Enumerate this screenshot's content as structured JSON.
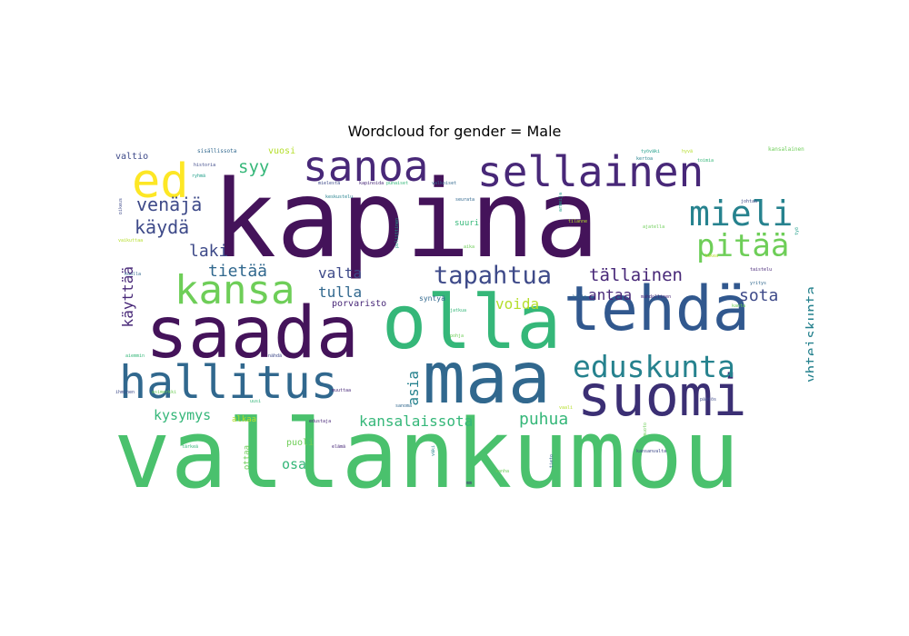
{
  "title": "Wordcloud for gender = Male",
  "palette": {
    "dark_purple": "#44135a",
    "purple": "#482878",
    "indigo": "#3e4a89",
    "blue": "#31688e",
    "teal": "#26828e",
    "green_teal": "#1f9e89",
    "green": "#35b779",
    "light_green": "#6ece58",
    "yellow_green": "#b5de2b",
    "yellow": "#fde725"
  },
  "words": [
    {
      "text": "kapina",
      "color": "#44135a"
    },
    {
      "text": "vallankumou",
      "color": "#4ac16d"
    },
    {
      "text": "saada",
      "color": "#44135a"
    },
    {
      "text": "olla",
      "color": "#35b779"
    },
    {
      "text": "maa",
      "color": "#31688e"
    },
    {
      "text": "tehdä",
      "color": "#31588e"
    },
    {
      "text": "suomi",
      "color": "#3b2f74"
    },
    {
      "text": "hallitus",
      "color": "#31688e"
    },
    {
      "text": "kansa",
      "color": "#6ece58"
    },
    {
      "text": "sanoa",
      "color": "#482878"
    },
    {
      "text": "sellainen",
      "color": "#482878"
    },
    {
      "text": "ed",
      "color": "#fde725"
    },
    {
      "text": "eduskunta",
      "color": "#26828e"
    },
    {
      "text": "mieli",
      "color": "#26828e"
    },
    {
      "text": "pitää",
      "color": "#6ece58"
    },
    {
      "text": "tapahtua",
      "color": "#3e4a89"
    },
    {
      "text": "venäjä",
      "color": "#3e4a89"
    },
    {
      "text": "käydä",
      "color": "#3e4a89"
    },
    {
      "text": "syy",
      "color": "#35b779"
    },
    {
      "text": "laki",
      "color": "#3e4a89"
    },
    {
      "text": "tietää",
      "color": "#31688e"
    },
    {
      "text": "valta",
      "color": "#3e4a89"
    },
    {
      "text": "tulla",
      "color": "#31688e"
    },
    {
      "text": "tällainen",
      "color": "#482878"
    },
    {
      "text": "sota",
      "color": "#3e4a89"
    },
    {
      "text": "antaa",
      "color": "#482878"
    },
    {
      "text": "voida",
      "color": "#b5de2b"
    },
    {
      "text": "kysymys",
      "color": "#35b779"
    },
    {
      "text": "kansalaissota",
      "color": "#35b779"
    },
    {
      "text": "puhua",
      "color": "#35b779"
    },
    {
      "text": "asia",
      "color": "#26828e"
    },
    {
      "text": "yhteiskunta",
      "color": "#26828e"
    },
    {
      "text": "käyttää",
      "color": "#482878"
    },
    {
      "text": "osa",
      "color": "#35b779"
    },
    {
      "text": "puoli",
      "color": "#6ece58"
    },
    {
      "text": "alkaa",
      "color": "#b5de2b"
    },
    {
      "text": "ottaa",
      "color": "#6ece58"
    },
    {
      "text": "porvaristo",
      "color": "#482878"
    },
    {
      "text": "syntyä",
      "color": "#31688e"
    },
    {
      "text": "vuosi",
      "color": "#b5de2b"
    },
    {
      "text": "valtio",
      "color": "#3e4a89"
    },
    {
      "text": "suuri",
      "color": "#35b779"
    },
    {
      "text": "sisällissota",
      "color": "#31688e"
    },
    {
      "text": "kansalainen",
      "color": "#6ece58"
    },
    {
      "text": "ryhmä",
      "color": "#1f9e89"
    },
    {
      "text": "historia",
      "color": "#3e4a89"
    },
    {
      "text": "mielestä",
      "color": "#3e4a89"
    },
    {
      "text": "kapinoida",
      "color": "#482878"
    },
    {
      "text": "punaiset",
      "color": "#35b779"
    },
    {
      "text": "valkoiset",
      "color": "#31688e"
    },
    {
      "text": "työväki",
      "color": "#1f9e89"
    },
    {
      "text": "tilanne",
      "color": "#b5de2b"
    },
    {
      "text": "ajatella",
      "color": "#6ece58"
    },
    {
      "text": "seurata",
      "color": "#31688e"
    },
    {
      "text": "oikeus",
      "color": "#3e4a89"
    },
    {
      "text": "aika",
      "color": "#6ece58"
    },
    {
      "text": "elämä",
      "color": "#482878"
    },
    {
      "text": "kertoa",
      "color": "#26828e"
    },
    {
      "text": "toimia",
      "color": "#35b779"
    },
    {
      "text": "vaikuttaa",
      "color": "#b5de2b"
    },
    {
      "text": "kuulla",
      "color": "#31688e"
    },
    {
      "text": "ihminen",
      "color": "#3e4a89"
    },
    {
      "text": "esimerkki",
      "color": "#6ece58"
    },
    {
      "text": "muuttaa",
      "color": "#482878"
    },
    {
      "text": "poliittinen",
      "color": "#1f9e89"
    },
    {
      "text": "aiemmin",
      "color": "#35b779"
    },
    {
      "text": "nähdä",
      "color": "#3e4a89"
    },
    {
      "text": "sanoma",
      "color": "#31688e"
    },
    {
      "text": "lukea",
      "color": "#b5de2b"
    },
    {
      "text": "kanta",
      "color": "#6ece58"
    },
    {
      "text": "keskustelu",
      "color": "#26828e"
    },
    {
      "text": "edustaja",
      "color": "#482878"
    },
    {
      "text": "päätös",
      "color": "#3e4a89"
    },
    {
      "text": "jatkua",
      "color": "#35b779"
    },
    {
      "text": "kirja",
      "color": "#31688e"
    },
    {
      "text": "armeija",
      "color": "#1f9e89"
    },
    {
      "text": "pohja",
      "color": "#6ece58"
    },
    {
      "text": "vaali",
      "color": "#b5de2b"
    },
    {
      "text": "kansanvalta",
      "color": "#3e4a89"
    },
    {
      "text": "mahdollinen",
      "color": "#482878"
    },
    {
      "text": "tärkeä",
      "color": "#35b779"
    },
    {
      "text": "väki",
      "color": "#26828e"
    },
    {
      "text": "tieto",
      "color": "#31688e"
    },
    {
      "text": "vanha",
      "color": "#6ece58"
    },
    {
      "text": "hyvä",
      "color": "#b5de2b"
    },
    {
      "text": "johtaa",
      "color": "#3e4a89"
    },
    {
      "text": "työ",
      "color": "#1f9e89"
    },
    {
      "text": "uusi",
      "color": "#35b779"
    },
    {
      "text": "taistelu",
      "color": "#482878"
    },
    {
      "text": "yritys",
      "color": "#31688e"
    },
    {
      "text": "muoto",
      "color": "#6ece58"
    },
    {
      "text": "mm",
      "color": "#482878"
    }
  ]
}
